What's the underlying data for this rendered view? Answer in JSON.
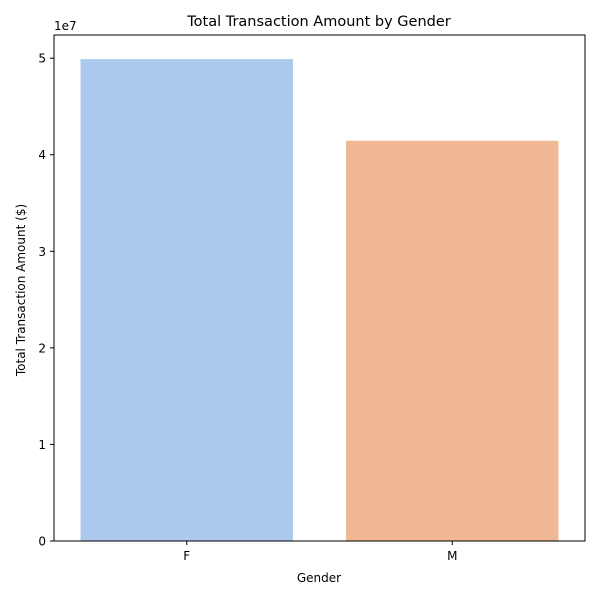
{
  "chart_data": {
    "type": "bar",
    "title": "Total Transaction Amount by Gender",
    "xlabel": "Gender",
    "ylabel": "Total Transaction Amount ($)",
    "categories": [
      "F",
      "M"
    ],
    "values": [
      49900000,
      41450000
    ],
    "colors": [
      "#abc9ed",
      "#f0b894"
    ],
    "ylim": [
      0,
      52400000
    ],
    "yticks": [
      0,
      10000000,
      20000000,
      30000000,
      40000000,
      50000000
    ],
    "ytick_labels": [
      "0",
      "1",
      "2",
      "3",
      "4",
      "5"
    ],
    "y_offset_label": "1e7",
    "grid": false,
    "legend": "none"
  }
}
